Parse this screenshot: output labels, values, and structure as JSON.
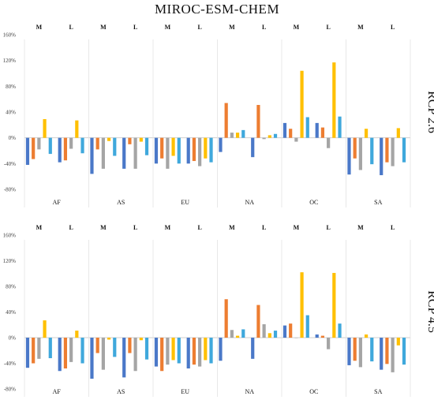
{
  "title": "MIROC-ESM-CHEM",
  "colors": [
    "#4a78c8",
    "#ed7d31",
    "#a5a5a5",
    "#ffc000",
    "#3fa8dc"
  ],
  "chart_data": [
    {
      "type": "bar",
      "row_label": "RCP 2.6",
      "ylim": [
        -80,
        160
      ],
      "yticks": [
        "160%",
        "120%",
        "80%",
        "40%",
        "0%",
        "-40%",
        "-80%"
      ],
      "ytick_values": [
        160,
        120,
        80,
        40,
        0,
        -40,
        -80
      ],
      "grid": false,
      "categories": [
        "AF",
        "AS",
        "EU",
        "NA",
        "OC",
        "SA"
      ],
      "subgroups": [
        "M",
        "L"
      ],
      "series_count": 5,
      "values": [
        [
          [
            -42,
            -33,
            -18,
            29,
            -25
          ],
          [
            -38,
            -35,
            -17,
            27,
            -24
          ]
        ],
        [
          [
            -56,
            -18,
            -48,
            -5,
            -28
          ],
          [
            -48,
            -10,
            -48,
            -6,
            -27
          ]
        ],
        [
          [
            -40,
            -32,
            -48,
            -28,
            -40
          ],
          [
            -40,
            -36,
            -44,
            -32,
            -38
          ]
        ],
        [
          [
            -22,
            54,
            8,
            8,
            12
          ],
          [
            -30,
            51,
            -2,
            4,
            6
          ]
        ],
        [
          [
            23,
            14,
            -6,
            104,
            32
          ],
          [
            23,
            16,
            -16,
            117,
            33
          ]
        ],
        [
          [
            -57,
            -32,
            -50,
            14,
            -41
          ],
          [
            -58,
            -38,
            -44,
            15,
            -38
          ]
        ]
      ]
    },
    {
      "type": "bar",
      "row_label": "RCP 4.5",
      "ylim": [
        -80,
        160
      ],
      "yticks": [
        "160%",
        "120%",
        "80%",
        "40%",
        "0%",
        "-40%",
        "-80%"
      ],
      "ytick_values": [
        160,
        120,
        80,
        40,
        0,
        -40,
        -80
      ],
      "grid": false,
      "categories": [
        "AF",
        "AS",
        "EU",
        "NA",
        "OC",
        "SA"
      ],
      "subgroups": [
        "M",
        "L"
      ],
      "series_count": 5,
      "values": [
        [
          [
            -47,
            -40,
            -33,
            27,
            -32
          ],
          [
            -52,
            -48,
            -38,
            11,
            -40
          ]
        ],
        [
          [
            -64,
            -24,
            -50,
            -3,
            -30
          ],
          [
            -62,
            -24,
            -52,
            -4,
            -34
          ]
        ],
        [
          [
            -45,
            -52,
            -42,
            -35,
            -40
          ],
          [
            -48,
            -42,
            -45,
            -35,
            -40
          ]
        ],
        [
          [
            -36,
            60,
            12,
            3,
            13
          ],
          [
            -33,
            51,
            21,
            7,
            11
          ]
        ],
        [
          [
            19,
            22,
            0,
            102,
            35
          ],
          [
            5,
            3,
            -18,
            101,
            22
          ]
        ],
        [
          [
            -43,
            -36,
            -46,
            5,
            -37
          ],
          [
            -50,
            -41,
            -54,
            -12,
            -42
          ]
        ]
      ]
    }
  ]
}
